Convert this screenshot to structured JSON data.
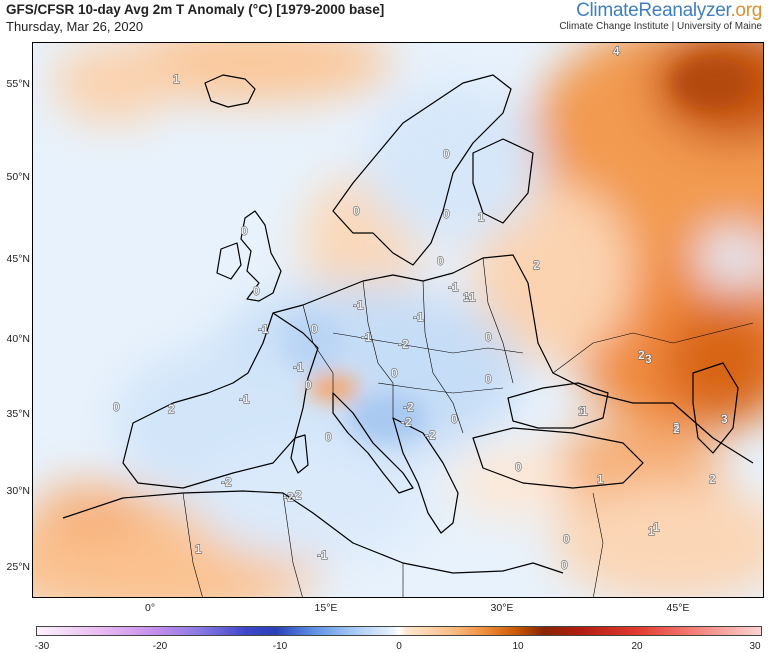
{
  "header": {
    "title": "GFS/CFSR 10-day Avg 2m T Anomaly (°C) [1979-2000 base]",
    "date": "Thursday, Mar 26, 2020"
  },
  "brand": {
    "name_part1": "Climate",
    "name_part2": "Reanalyzer",
    "name_part3": ".org",
    "tagline": "Climate Change Institute | University of Maine",
    "colors": {
      "climate": "#3f7fbf",
      "org": "#e0902c"
    }
  },
  "map": {
    "projection": "lat-lon",
    "lat_labels": [
      "55°N",
      "50°N",
      "45°N",
      "40°N",
      "35°N",
      "30°N",
      "25°N"
    ],
    "lon_labels": [
      "0°",
      "15°E",
      "30°E",
      "45°E"
    ],
    "contour_labels": [
      "1",
      "4",
      "0",
      "0",
      "2",
      "0",
      "1",
      "0",
      "0",
      "0",
      "-1",
      "-1",
      "0",
      "-1",
      "1",
      "2",
      "0",
      "-1",
      "-1",
      "0",
      "-2",
      "-1",
      "-2",
      "0",
      "0",
      "-1",
      "1",
      "1",
      "0",
      "-2",
      "-2",
      "2",
      "0",
      "1",
      "2",
      "0",
      "-2",
      "-2",
      "3",
      "2",
      "2",
      "3",
      "0",
      "-2",
      "1",
      "0",
      "-1",
      "1",
      "1",
      "-1",
      "0"
    ],
    "colors": {
      "warm": "#f29046",
      "warm_deep": "#c54e00",
      "cool": "#c8e0f8",
      "cool_light": "#e6f1fc",
      "neutral": "#ffffff"
    }
  },
  "colorbar": {
    "ticks": [
      "-30",
      "-20",
      "-10",
      "0",
      "10",
      "20",
      "30"
    ],
    "range": [
      -30,
      30
    ]
  }
}
